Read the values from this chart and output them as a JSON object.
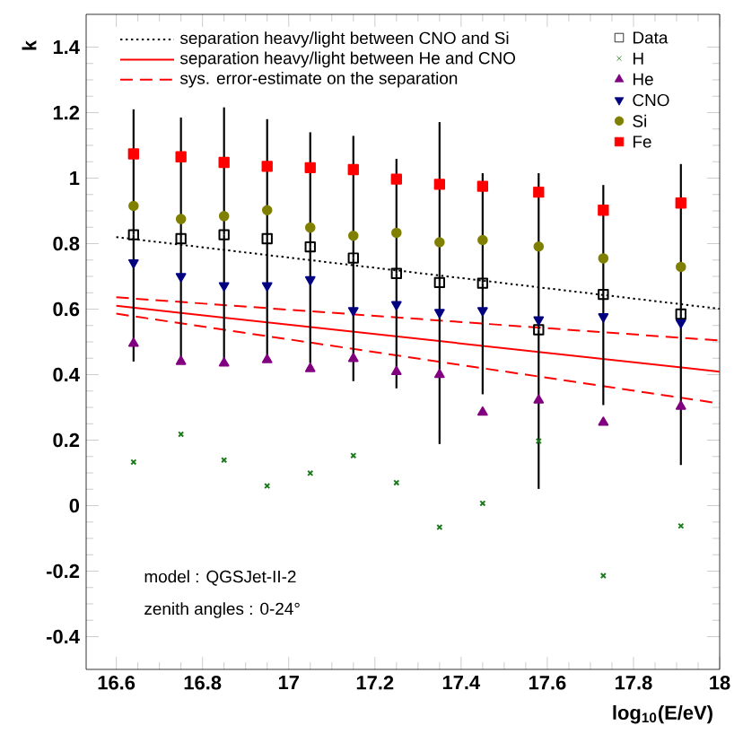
{
  "chart_data": {
    "type": "scatter",
    "xlabel": "log$_{10}$(E/eV)",
    "ylabel": "k",
    "xlim": [
      16.53,
      18.0
    ],
    "ylim": [
      -0.5,
      1.5
    ],
    "xticks": [
      16.6,
      16.8,
      17,
      17.2,
      17.4,
      17.6,
      17.8,
      18
    ],
    "yticks": [
      -0.4,
      -0.2,
      0,
      0.2,
      0.4,
      0.6,
      0.8,
      1,
      1.2,
      1.4
    ],
    "grid": false,
    "legend": "top",
    "annotations": [
      "model : QGSJet-II-2",
      "zenith angles : 0-24°"
    ],
    "series": [
      {
        "name": "separation heavy/light between CNO and Si",
        "type": "line",
        "color": "#000000",
        "line_style": "dotted",
        "marker": "none",
        "x": [
          16.6,
          18.0
        ],
        "values": [
          0.82,
          0.601
        ]
      },
      {
        "name": "separation heavy/light between He and CNO",
        "type": "line",
        "color": "#ff0000",
        "line_style": "solid",
        "marker": "none",
        "x": [
          16.6,
          18.0
        ],
        "values": [
          0.61,
          0.409
        ]
      },
      {
        "name": "sys. error-estimate on the separation",
        "type": "line",
        "color": "#ff0000",
        "line_style": "dashed",
        "marker": "none",
        "x": [
          16.6,
          18.0
        ],
        "values": [
          0.636,
          0.504
        ]
      },
      {
        "type": "line",
        "color": "#ff0000",
        "line_style": "dashed",
        "marker": "none",
        "x": [
          16.6,
          18.0
        ],
        "values": [
          0.586,
          0.312
        ]
      },
      {
        "name": "Data",
        "color": "#000000",
        "marker": "square",
        "x": [
          16.64,
          16.75,
          16.85,
          16.95,
          17.05,
          17.15,
          17.25,
          17.35,
          17.45,
          17.58,
          17.73,
          17.91
        ],
        "values": [
          0.827,
          0.815,
          0.827,
          0.815,
          0.79,
          0.756,
          0.709,
          0.681,
          0.679,
          0.537,
          0.645,
          0.585
        ],
        "errors": [
          [
            0.44,
            1.21
          ],
          [
            0.449,
            1.185
          ],
          [
            0.445,
            1.216
          ],
          [
            0.44,
            1.18
          ],
          [
            0.435,
            1.14
          ],
          [
            0.38,
            1.129
          ],
          [
            0.358,
            1.059
          ],
          [
            0.188,
            1.171
          ],
          [
            0.34,
            1.015
          ],
          [
            0.051,
            1.015
          ],
          [
            0.307,
            0.979
          ],
          [
            0.124,
            1.043
          ]
        ]
      },
      {
        "name": "H",
        "color": "#1a7a1a",
        "marker": "cross",
        "x": [
          16.64,
          16.75,
          16.85,
          16.95,
          17.05,
          17.15,
          17.25,
          17.35,
          17.45,
          17.58,
          17.73,
          17.91
        ],
        "values": [
          0.133,
          0.218,
          0.139,
          0.06,
          0.099,
          0.153,
          0.07,
          -0.066,
          0.007,
          0.197,
          -0.214,
          -0.062
        ]
      },
      {
        "name": "He",
        "color": "#800080",
        "marker": "triangle",
        "x": [
          16.64,
          16.75,
          16.85,
          16.95,
          17.05,
          17.15,
          17.25,
          17.35,
          17.45,
          17.58,
          17.73,
          17.91
        ],
        "values": [
          0.495,
          0.44,
          0.435,
          0.445,
          0.418,
          0.449,
          0.409,
          0.4,
          0.285,
          0.322,
          0.254,
          0.303
        ]
      },
      {
        "name": "CNO",
        "color": "#000080",
        "marker": "triangle_down",
        "x": [
          16.64,
          16.75,
          16.85,
          16.95,
          17.05,
          17.15,
          17.25,
          17.35,
          17.45,
          17.58,
          17.73,
          17.91
        ],
        "values": [
          0.742,
          0.7,
          0.672,
          0.672,
          0.69,
          0.596,
          0.614,
          0.59,
          0.596,
          0.568,
          0.577,
          0.559
        ]
      },
      {
        "name": "Si",
        "color": "#808000",
        "marker": "circle",
        "x": [
          16.64,
          16.75,
          16.85,
          16.95,
          17.05,
          17.15,
          17.25,
          17.35,
          17.45,
          17.58,
          17.73,
          17.91
        ],
        "values": [
          0.915,
          0.875,
          0.884,
          0.902,
          0.849,
          0.824,
          0.833,
          0.804,
          0.811,
          0.791,
          0.755,
          0.729
        ]
      },
      {
        "name": "Fe",
        "color": "#ff0000",
        "marker": "square_filled",
        "x": [
          16.64,
          16.75,
          16.85,
          16.95,
          17.05,
          17.15,
          17.25,
          17.35,
          17.45,
          17.58,
          17.73,
          17.91
        ],
        "values": [
          1.074,
          1.065,
          1.048,
          1.036,
          1.032,
          1.026,
          0.997,
          0.981,
          0.975,
          0.957,
          0.902,
          0.924
        ]
      }
    ]
  }
}
